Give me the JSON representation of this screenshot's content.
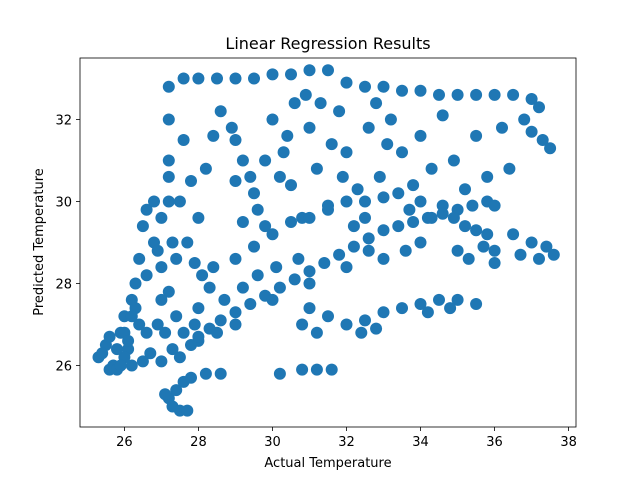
{
  "chart_data": {
    "type": "scatter",
    "title": "Linear Regression Results",
    "xlabel": "Actual Temperature",
    "ylabel": "Predicted Temperature",
    "xlim": [
      24.8,
      38.2
    ],
    "ylim": [
      24.5,
      33.5
    ],
    "xticks": [
      26,
      28,
      30,
      32,
      34,
      36,
      38
    ],
    "yticks": [
      26,
      28,
      30,
      32
    ],
    "grid": false,
    "legend": "none",
    "point_color": "#1f77b4",
    "series": [
      {
        "points": [
          [
            25.3,
            26.2
          ],
          [
            25.5,
            26.5
          ],
          [
            25.7,
            26.0
          ],
          [
            25.9,
            26.8
          ],
          [
            26.0,
            27.2
          ],
          [
            26.1,
            26.4
          ],
          [
            26.2,
            27.6
          ],
          [
            26.3,
            28.0
          ],
          [
            26.4,
            28.6
          ],
          [
            26.5,
            29.4
          ],
          [
            26.6,
            29.8
          ],
          [
            26.8,
            29.0
          ],
          [
            27.0,
            28.4
          ],
          [
            27.2,
            27.8
          ],
          [
            27.4,
            27.2
          ],
          [
            27.6,
            26.8
          ],
          [
            27.8,
            26.5
          ],
          [
            28.0,
            26.6
          ],
          [
            28.3,
            26.9
          ],
          [
            28.6,
            27.1
          ],
          [
            29.0,
            27.3
          ],
          [
            29.4,
            27.5
          ],
          [
            29.8,
            27.7
          ],
          [
            30.2,
            27.9
          ],
          [
            30.6,
            28.1
          ],
          [
            31.0,
            28.3
          ],
          [
            31.4,
            28.5
          ],
          [
            31.8,
            28.7
          ],
          [
            32.2,
            28.9
          ],
          [
            32.6,
            29.1
          ],
          [
            33.0,
            29.3
          ],
          [
            33.4,
            29.4
          ],
          [
            33.8,
            29.5
          ],
          [
            34.2,
            29.6
          ],
          [
            34.6,
            29.7
          ],
          [
            35.0,
            29.8
          ],
          [
            35.4,
            29.9
          ],
          [
            35.8,
            30.0
          ],
          [
            27.2,
            32.8
          ],
          [
            27.6,
            33.0
          ],
          [
            28.0,
            33.0
          ],
          [
            28.5,
            33.0
          ],
          [
            29.0,
            33.0
          ],
          [
            29.5,
            33.0
          ],
          [
            30.0,
            33.1
          ],
          [
            30.5,
            33.1
          ],
          [
            31.0,
            33.2
          ],
          [
            31.5,
            33.2
          ],
          [
            32.0,
            32.9
          ],
          [
            32.5,
            32.8
          ],
          [
            33.0,
            32.8
          ],
          [
            33.5,
            32.7
          ],
          [
            34.0,
            32.7
          ],
          [
            34.5,
            32.6
          ],
          [
            35.0,
            32.6
          ],
          [
            35.5,
            32.6
          ],
          [
            36.0,
            32.6
          ],
          [
            36.5,
            32.6
          ],
          [
            37.0,
            32.5
          ],
          [
            37.2,
            32.3
          ],
          [
            27.2,
            32.0
          ],
          [
            27.2,
            31.0
          ],
          [
            27.2,
            30.0
          ],
          [
            27.3,
            29.0
          ],
          [
            27.6,
            31.5
          ],
          [
            27.8,
            30.5
          ],
          [
            28.0,
            29.6
          ],
          [
            28.2,
            30.8
          ],
          [
            28.4,
            31.6
          ],
          [
            28.6,
            32.2
          ],
          [
            28.9,
            31.8
          ],
          [
            29.0,
            30.5
          ],
          [
            29.2,
            29.5
          ],
          [
            29.5,
            30.2
          ],
          [
            29.8,
            31.0
          ],
          [
            30.0,
            32.0
          ],
          [
            30.3,
            31.2
          ],
          [
            30.5,
            30.4
          ],
          [
            30.8,
            29.6
          ],
          [
            31.0,
            31.8
          ],
          [
            31.2,
            30.8
          ],
          [
            31.5,
            29.9
          ],
          [
            31.8,
            32.2
          ],
          [
            32.0,
            31.2
          ],
          [
            32.3,
            30.3
          ],
          [
            32.6,
            31.8
          ],
          [
            32.9,
            30.6
          ],
          [
            33.2,
            32.0
          ],
          [
            33.5,
            31.2
          ],
          [
            33.8,
            30.4
          ],
          [
            34.0,
            31.6
          ],
          [
            34.3,
            30.8
          ],
          [
            34.6,
            32.1
          ],
          [
            34.9,
            31.0
          ],
          [
            35.2,
            30.3
          ],
          [
            35.5,
            31.6
          ],
          [
            35.8,
            30.6
          ],
          [
            36.0,
            29.9
          ],
          [
            36.2,
            31.8
          ],
          [
            36.4,
            30.8
          ],
          [
            36.8,
            32.0
          ],
          [
            37.0,
            31.7
          ],
          [
            37.3,
            31.5
          ],
          [
            37.5,
            31.3
          ],
          [
            36.5,
            29.2
          ],
          [
            37.0,
            29.0
          ],
          [
            37.4,
            28.9
          ],
          [
            37.6,
            28.7
          ],
          [
            36.7,
            28.7
          ],
          [
            37.2,
            28.6
          ],
          [
            34.0,
            29.0
          ],
          [
            35.0,
            28.8
          ],
          [
            36.0,
            28.5
          ],
          [
            33.0,
            28.6
          ],
          [
            32.0,
            28.4
          ],
          [
            31.0,
            28.0
          ],
          [
            30.0,
            27.6
          ],
          [
            29.0,
            27.0
          ],
          [
            28.5,
            26.8
          ],
          [
            28.0,
            26.7
          ],
          [
            31.0,
            27.4
          ],
          [
            31.5,
            27.2
          ],
          [
            32.0,
            27.0
          ],
          [
            32.5,
            27.1
          ],
          [
            33.0,
            27.3
          ],
          [
            33.5,
            27.4
          ],
          [
            34.0,
            27.5
          ],
          [
            34.5,
            27.6
          ],
          [
            35.0,
            27.6
          ],
          [
            35.5,
            27.5
          ],
          [
            30.8,
            27.0
          ],
          [
            31.2,
            26.8
          ],
          [
            32.4,
            26.8
          ],
          [
            32.8,
            26.9
          ],
          [
            34.2,
            27.3
          ],
          [
            34.8,
            27.4
          ],
          [
            30.2,
            25.8
          ],
          [
            30.8,
            25.9
          ],
          [
            31.2,
            25.9
          ],
          [
            31.6,
            25.9
          ],
          [
            27.2,
            25.2
          ],
          [
            27.4,
            25.4
          ],
          [
            27.6,
            25.6
          ],
          [
            27.8,
            25.7
          ],
          [
            28.2,
            25.8
          ],
          [
            28.6,
            25.8
          ],
          [
            27.3,
            25.0
          ],
          [
            27.5,
            24.9
          ],
          [
            27.7,
            24.9
          ],
          [
            27.1,
            25.3
          ],
          [
            26.0,
            26.2
          ],
          [
            26.5,
            26.1
          ],
          [
            27.0,
            26.1
          ],
          [
            27.5,
            26.2
          ],
          [
            25.6,
            25.9
          ],
          [
            25.8,
            25.9
          ],
          [
            26.2,
            26.0
          ],
          [
            26.7,
            26.3
          ],
          [
            27.3,
            26.4
          ],
          [
            28.0,
            27.4
          ],
          [
            28.4,
            28.4
          ],
          [
            29.0,
            28.6
          ],
          [
            29.5,
            28.9
          ],
          [
            30.0,
            29.2
          ],
          [
            30.5,
            29.5
          ],
          [
            31.0,
            29.6
          ],
          [
            31.5,
            29.8
          ],
          [
            32.0,
            30.0
          ],
          [
            32.5,
            30.0
          ],
          [
            33.0,
            30.1
          ],
          [
            27.0,
            29.6
          ],
          [
            26.8,
            30.0
          ],
          [
            27.2,
            30.6
          ],
          [
            26.9,
            28.8
          ],
          [
            26.6,
            28.2
          ],
          [
            26.3,
            27.4
          ],
          [
            26.0,
            26.8
          ],
          [
            25.8,
            26.4
          ],
          [
            25.6,
            26.7
          ],
          [
            25.4,
            26.3
          ],
          [
            29.0,
            31.5
          ],
          [
            29.2,
            31.0
          ],
          [
            29.4,
            30.6
          ],
          [
            29.6,
            29.8
          ],
          [
            29.8,
            29.4
          ],
          [
            30.2,
            30.6
          ],
          [
            30.4,
            31.6
          ],
          [
            30.6,
            32.4
          ],
          [
            30.9,
            32.6
          ],
          [
            31.3,
            32.4
          ],
          [
            31.6,
            31.4
          ],
          [
            31.9,
            30.6
          ],
          [
            32.2,
            29.4
          ],
          [
            32.5,
            29.6
          ],
          [
            32.8,
            32.4
          ],
          [
            33.1,
            31.4
          ],
          [
            33.4,
            30.2
          ],
          [
            33.7,
            29.8
          ],
          [
            34.0,
            30.0
          ],
          [
            34.3,
            29.6
          ],
          [
            34.6,
            29.9
          ],
          [
            34.9,
            29.6
          ],
          [
            35.2,
            29.4
          ],
          [
            35.5,
            29.3
          ],
          [
            35.8,
            29.2
          ],
          [
            36.0,
            28.8
          ],
          [
            35.3,
            28.6
          ],
          [
            35.7,
            28.9
          ],
          [
            33.6,
            28.8
          ],
          [
            32.6,
            28.8
          ],
          [
            27.5,
            30.0
          ],
          [
            27.7,
            29.0
          ],
          [
            27.9,
            28.5
          ],
          [
            28.1,
            28.2
          ],
          [
            28.3,
            27.9
          ],
          [
            28.7,
            27.6
          ],
          [
            29.2,
            27.9
          ],
          [
            29.6,
            28.2
          ],
          [
            30.1,
            28.4
          ],
          [
            30.7,
            28.6
          ],
          [
            27.4,
            28.6
          ],
          [
            27.0,
            27.6
          ],
          [
            26.6,
            26.8
          ],
          [
            26.4,
            27.0
          ],
          [
            26.2,
            27.2
          ],
          [
            25.9,
            26.0
          ],
          [
            26.1,
            26.6
          ],
          [
            26.9,
            27.0
          ],
          [
            27.1,
            26.8
          ],
          [
            27.9,
            27.0
          ]
        ]
      }
    ]
  }
}
